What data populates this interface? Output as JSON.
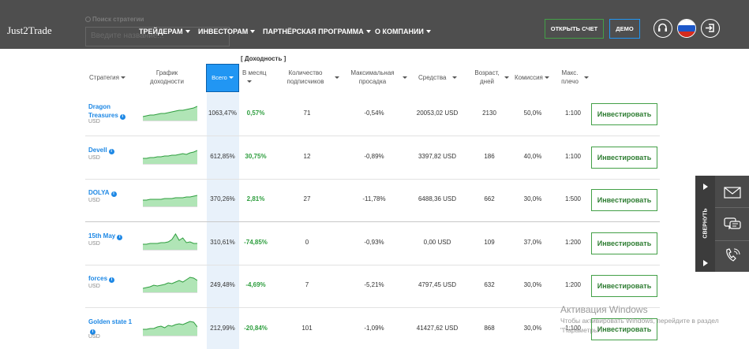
{
  "header": {
    "logo": "Just2Trade",
    "search_label": "Поиск стратегии",
    "search_placeholder": "Введите название...",
    "nav": [
      "ТРЕЙДЕРАМ",
      "ИНВЕСТОРАМ",
      "ПАРТНЁРСКАЯ ПРОГРАММА",
      "О КОМПАНИИ"
    ],
    "open_account": "ОТКРЫТЬ СЧЕТ",
    "demo": "ДЕМО",
    "language": "RU"
  },
  "table": {
    "group_header": "[ Доходность ]",
    "columns": {
      "strategy": "Стратегия",
      "chart": "График доходности",
      "total": "Всего",
      "month": "В месяц",
      "subscribers": "Количество подписчиков",
      "max_drawdown": "Максимальная просадка",
      "funds": "Средства",
      "age": "Возраст, дней",
      "commission": "Комиссия",
      "leverage": "Макс. плечо"
    },
    "invest_label": "Инвестировать",
    "rows": [
      {
        "name": "Dragon Treasures",
        "currency": "USD",
        "total": "1063,47%",
        "month": "0,57%",
        "subscribers": "71",
        "drawdown": "-0,54%",
        "funds": "20053,02 USD",
        "age": "2130",
        "commission": "50,0%",
        "leverage": "1:100"
      },
      {
        "name": "Devell",
        "currency": "USD",
        "total": "612,85%",
        "month": "30,75%",
        "subscribers": "12",
        "drawdown": "-0,89%",
        "funds": "3397,82 USD",
        "age": "186",
        "commission": "40,0%",
        "leverage": "1:100"
      },
      {
        "name": "DOLYA",
        "currency": "USD",
        "total": "370,26%",
        "month": "2,81%",
        "subscribers": "27",
        "drawdown": "-11,78%",
        "funds": "6488,36 USD",
        "age": "662",
        "commission": "30,0%",
        "leverage": "1:500"
      },
      {
        "name": "15th May",
        "currency": "USD",
        "total": "310,61%",
        "month": "-74,85%",
        "subscribers": "0",
        "drawdown": "-0,93%",
        "funds": "0,00 USD",
        "age": "109",
        "commission": "37,0%",
        "leverage": "1:200"
      },
      {
        "name": "forces",
        "currency": "USD",
        "total": "249,48%",
        "month": "-4,69%",
        "subscribers": "7",
        "drawdown": "-5,21%",
        "funds": "4797,45 USD",
        "age": "632",
        "commission": "30,0%",
        "leverage": "1:200"
      },
      {
        "name": "Golden state 1",
        "currency": "USD",
        "total": "212,99%",
        "month": "-20,84%",
        "subscribers": "101",
        "drawdown": "-1,09%",
        "funds": "41427,62 USD",
        "age": "868",
        "commission": "30,0%",
        "leverage": "1:100"
      }
    ]
  },
  "side_panel": {
    "collapse_label": "СВЕРНУТЬ"
  },
  "watermark": {
    "title": "Активация Windows",
    "line1": "Чтобы активировать Windows, перейдите в раздел",
    "line2": "\"Параметры\"."
  },
  "colors": {
    "accent": "#2196f3",
    "green": "#43a047",
    "header_bg": "#484848"
  }
}
